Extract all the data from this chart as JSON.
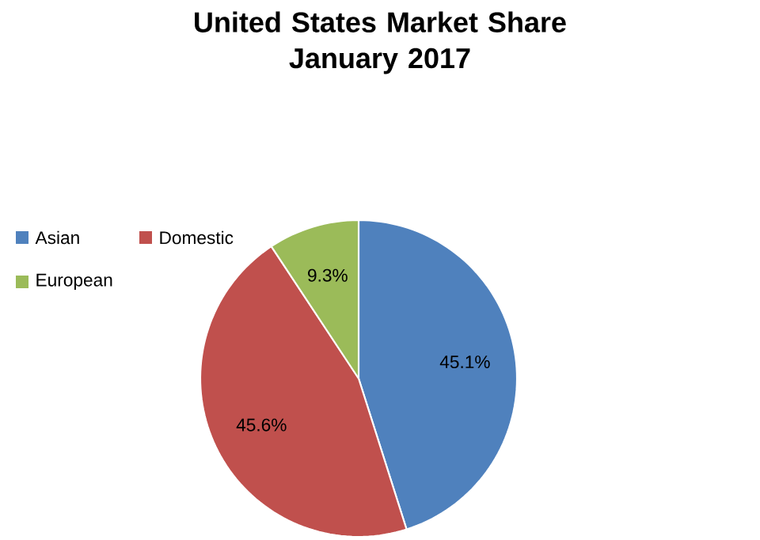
{
  "chart_data": {
    "type": "pie",
    "title": "United States Market Share\nJanuary 2017",
    "categories": [
      "Asian",
      "Domestic",
      "European"
    ],
    "values": [
      45.1,
      45.6,
      9.3
    ],
    "colors": [
      "#4f81bd",
      "#c0504d",
      "#9bbb59"
    ],
    "value_labels": [
      "45.1%",
      "45.6%",
      "9.3%"
    ],
    "legend": "left"
  }
}
